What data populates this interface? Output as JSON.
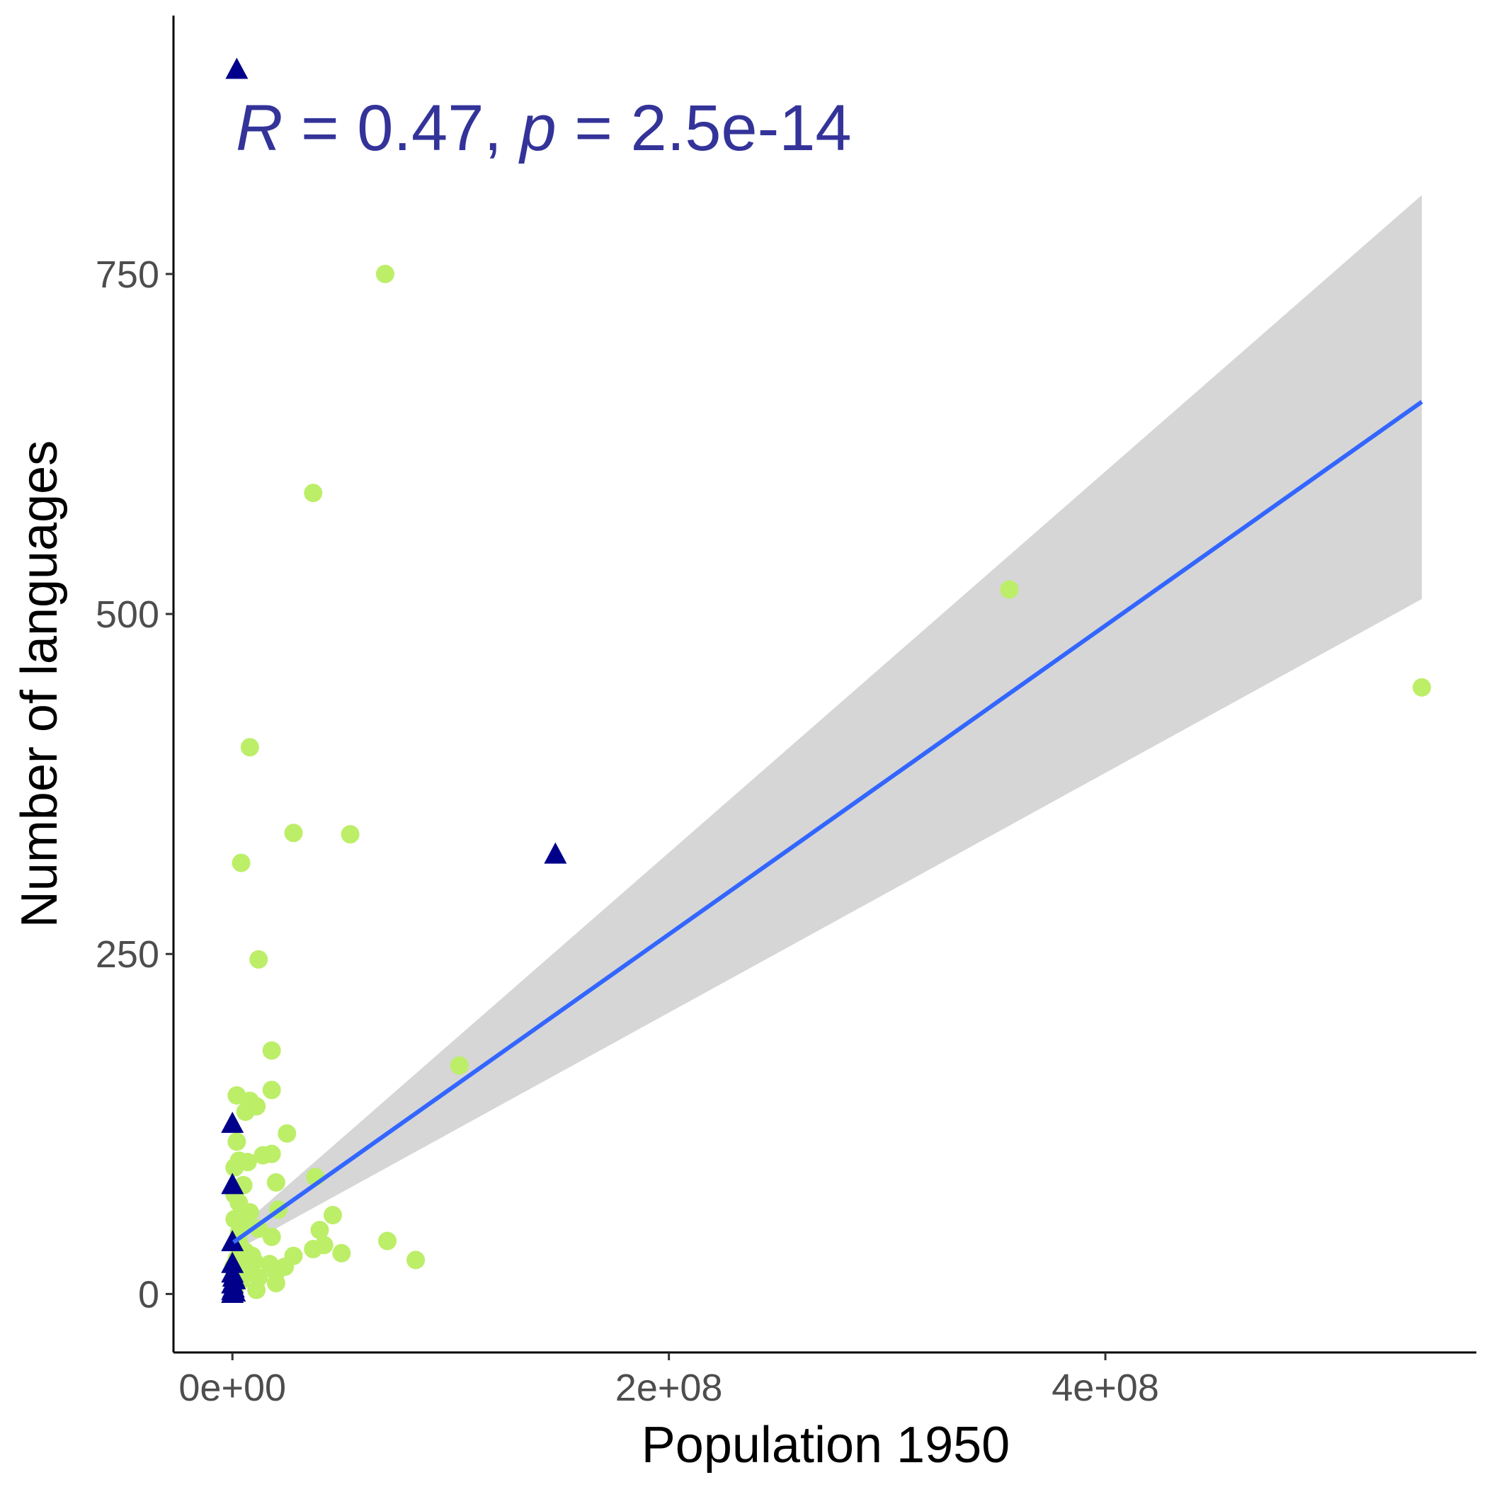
{
  "chart_data": {
    "type": "scatter",
    "xlabel": "Population 1950",
    "ylabel": "Number of languages",
    "xlim": [
      -27000000.0,
      570000000.0
    ],
    "ylim": [
      -43,
      940
    ],
    "x_ticks": [
      0,
      200000000,
      400000000
    ],
    "x_tick_labels": [
      "0e+00",
      "2e+08",
      "4e+08"
    ],
    "y_ticks": [
      0,
      250,
      500,
      750
    ],
    "y_tick_labels": [
      "0",
      "250",
      "500",
      "750"
    ],
    "grid": false,
    "legend": "none",
    "annotation": {
      "r_symbol": "R",
      "r_text": " = 0.47, ",
      "p_symbol": "p",
      "p_text": " = 2.5e-14"
    },
    "colors": {
      "circles": "#bcee68",
      "triangles": "#00008b",
      "fit_line": "#3366ff",
      "confidence_band": "#d6d6d6",
      "annotation": "#333399"
    },
    "regression": {
      "x": [
        500000,
        545000000
      ],
      "y": [
        38,
        656
      ],
      "ci_upper": [
        45,
        808
      ],
      "ci_lower": [
        31,
        511
      ]
    },
    "series": [
      {
        "marker": "circle",
        "points": [
          [
            70000000,
            750
          ],
          [
            37000000,
            589
          ],
          [
            356000000,
            518
          ],
          [
            545000000,
            446
          ],
          [
            8000000,
            402
          ],
          [
            28000000,
            339
          ],
          [
            54000000,
            338
          ],
          [
            4000000,
            317
          ],
          [
            12000000,
            246
          ],
          [
            18000000,
            179
          ],
          [
            104000000,
            168
          ],
          [
            18000000,
            150
          ],
          [
            2000000,
            146
          ],
          [
            8000000,
            142
          ],
          [
            11000000,
            138
          ],
          [
            6000000,
            134
          ],
          [
            25000000,
            118
          ],
          [
            2000000,
            112
          ],
          [
            14000000,
            102
          ],
          [
            18000000,
            103
          ],
          [
            3000000,
            98
          ],
          [
            1000000,
            93
          ],
          [
            7000000,
            97
          ],
          [
            38000000,
            86
          ],
          [
            20000000,
            82
          ],
          [
            5000000,
            80
          ],
          [
            1000000,
            73
          ],
          [
            3000000,
            67
          ],
          [
            8000000,
            60
          ],
          [
            21000000,
            62
          ],
          [
            46000000,
            58
          ],
          [
            1000000,
            55
          ],
          [
            5000000,
            50
          ],
          [
            12000000,
            48
          ],
          [
            40000000,
            47
          ],
          [
            3000000,
            45
          ],
          [
            18000000,
            42
          ],
          [
            71000000,
            39
          ],
          [
            42000000,
            36
          ],
          [
            37000000,
            33
          ],
          [
            6000000,
            31
          ],
          [
            50000000,
            30
          ],
          [
            28000000,
            28
          ],
          [
            84000000,
            25
          ],
          [
            2000000,
            26
          ],
          [
            10000000,
            24
          ],
          [
            17000000,
            22
          ],
          [
            24000000,
            20
          ],
          [
            6000000,
            18
          ],
          [
            20000000,
            16
          ],
          [
            1000000,
            14
          ],
          [
            12000000,
            12
          ],
          [
            4000000,
            10
          ],
          [
            20000000,
            8
          ],
          [
            11000000,
            3
          ],
          [
            1000000,
            2
          ],
          [
            500000,
            6
          ],
          [
            3000000,
            38
          ],
          [
            9000000,
            28
          ],
          [
            500000,
            20
          ]
        ]
      },
      {
        "marker": "triangle",
        "points": [
          [
            2000000,
            900
          ],
          [
            148000000,
            323
          ],
          [
            0,
            125
          ],
          [
            0,
            80
          ],
          [
            0,
            38
          ],
          [
            0,
            22
          ],
          [
            0,
            15
          ],
          [
            1000000,
            10
          ],
          [
            0,
            7
          ],
          [
            500000,
            4
          ],
          [
            0,
            2
          ],
          [
            1000000,
            1
          ],
          [
            0,
            0
          ],
          [
            500000,
            12
          ]
        ]
      }
    ]
  }
}
